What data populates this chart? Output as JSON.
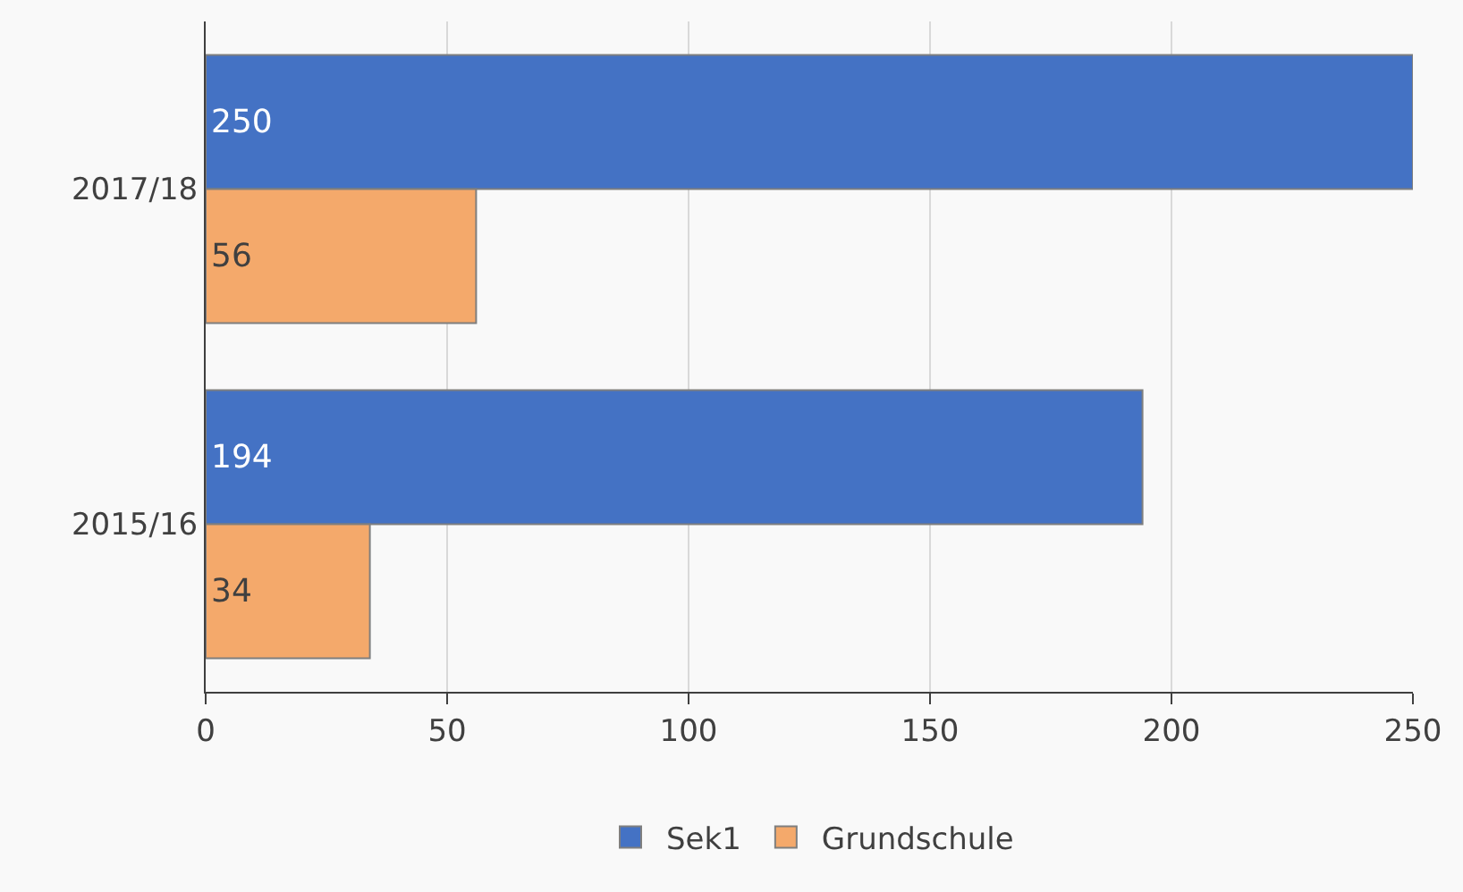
{
  "chart_data": {
    "type": "bar",
    "orientation": "horizontal",
    "categories": [
      "2017/18",
      "2015/16"
    ],
    "series": [
      {
        "name": "Sek1",
        "color": "#4472c4",
        "values": [
          250,
          194
        ]
      },
      {
        "name": "Grundschule",
        "color": "#f4a96b",
        "values": [
          56,
          34
        ]
      }
    ],
    "xlim": [
      0,
      250
    ],
    "xticks": [
      0,
      50,
      100,
      150,
      200,
      250
    ],
    "grid": "x",
    "legend": "bottom",
    "data_labels": true
  }
}
